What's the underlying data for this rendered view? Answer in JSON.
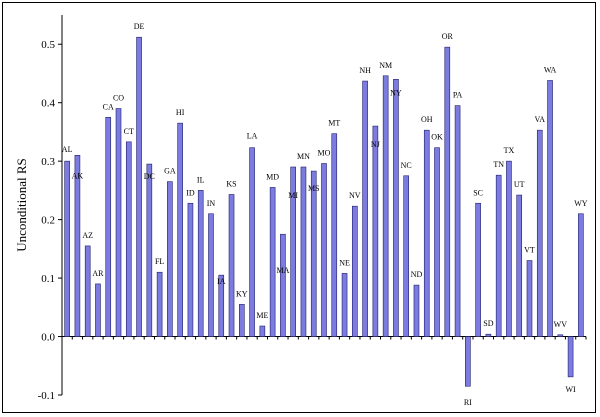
{
  "chart_data": {
    "type": "bar",
    "title": "",
    "xlabel": "",
    "ylabel": "Unconditional RS",
    "ylim": [
      -0.1,
      0.55
    ],
    "yticks": [
      "-0.1",
      "0.0",
      "0.1",
      "0.2",
      "0.3",
      "0.4",
      "0.5"
    ],
    "grid": false,
    "bar_color": "#7b7be0",
    "bar_edge_color": "#1f1f6b",
    "categories": [
      "AL",
      "AK",
      "AZ",
      "AR",
      "CA",
      "CO",
      "CT",
      "DE",
      "DC",
      "FL",
      "GA",
      "HI",
      "ID",
      "IL",
      "IN",
      "IA",
      "KS",
      "KY",
      "LA",
      "ME",
      "MD",
      "MA",
      "MI",
      "MN",
      "MS",
      "MO",
      "MT",
      "NE",
      "NV",
      "NH",
      "NJ",
      "NM",
      "NY",
      "NC",
      "ND",
      "OH",
      "OK",
      "OR",
      "PA",
      "RI",
      "SC",
      "SD",
      "TN",
      "TX",
      "UT",
      "VT",
      "VA",
      "WA",
      "WV",
      "WI",
      "WY"
    ],
    "values": [
      0.3,
      0.31,
      0.155,
      0.09,
      0.375,
      0.39,
      0.333,
      0.512,
      0.295,
      0.11,
      0.265,
      0.365,
      0.228,
      0.25,
      0.21,
      0.105,
      0.243,
      0.055,
      0.323,
      0.018,
      0.255,
      0.175,
      0.29,
      0.29,
      0.283,
      0.296,
      0.347,
      0.108,
      0.223,
      0.437,
      0.36,
      0.446,
      0.44,
      0.275,
      0.088,
      0.353,
      0.323,
      0.495,
      0.395,
      -0.085,
      0.228,
      0.004,
      0.276,
      0.3,
      0.242,
      0.13,
      0.353,
      0.438,
      0.003,
      -0.069,
      0.21
    ],
    "bar_labels": [
      {
        "text": "AL",
        "bar": 0,
        "dy": -9
      },
      {
        "text": "AK",
        "bar": 1,
        "dy": 23
      },
      {
        "text": "AZ",
        "bar": 2,
        "dy": -8
      },
      {
        "text": "AR",
        "bar": 3,
        "dy": -8
      },
      {
        "text": "CA",
        "bar": 4,
        "dy": -8
      },
      {
        "text": "CO",
        "bar": 5,
        "dy": -8
      },
      {
        "text": "CT",
        "bar": 6,
        "dy": -8
      },
      {
        "text": "DE",
        "bar": 7,
        "dy": -8
      },
      {
        "text": "DC",
        "bar": 8,
        "dy": 15
      },
      {
        "text": "FL",
        "bar": 9,
        "dy": -8
      },
      {
        "text": "GA",
        "bar": 10,
        "dy": -8
      },
      {
        "text": "HI",
        "bar": 11,
        "dy": -8
      },
      {
        "text": "ID",
        "bar": 12,
        "dy": -8
      },
      {
        "text": "IL",
        "bar": 13,
        "dy": -8
      },
      {
        "text": "IN",
        "bar": 14,
        "dy": -8
      },
      {
        "text": "IA",
        "bar": 15,
        "dy": 9
      },
      {
        "text": "KS",
        "bar": 16,
        "dy": -8
      },
      {
        "text": "KY",
        "bar": 17,
        "dy": -8
      },
      {
        "text": "LA",
        "bar": 18,
        "dy": -9
      },
      {
        "text": "ME",
        "bar": 19,
        "dy": -8
      },
      {
        "text": "MD",
        "bar": 20,
        "dy": -8
      },
      {
        "text": "MA",
        "bar": 21,
        "dy": 39
      },
      {
        "text": "MI",
        "bar": 22,
        "dy": 31
      },
      {
        "text": "MN",
        "bar": 23,
        "dy": -8
      },
      {
        "text": "MS",
        "bar": 24,
        "dy": 20
      },
      {
        "text": "MO",
        "bar": 25,
        "dy": -8
      },
      {
        "text": "MT",
        "bar": 26,
        "dy": -8
      },
      {
        "text": "NE",
        "bar": 27,
        "dy": -8
      },
      {
        "text": "NV",
        "bar": 28,
        "dy": -8
      },
      {
        "text": "NH",
        "bar": 29,
        "dy": -8
      },
      {
        "text": "NJ",
        "bar": 30,
        "dy": 21
      },
      {
        "text": "NM",
        "bar": 31,
        "dy": -8
      },
      {
        "text": "NY",
        "bar": 32,
        "dy": 16
      },
      {
        "text": "NC",
        "bar": 33,
        "dy": -8
      },
      {
        "text": "ND",
        "bar": 34,
        "dy": -8
      },
      {
        "text": "OH",
        "bar": 35,
        "dy": -8
      },
      {
        "text": "OK",
        "bar": 36,
        "dy": -8
      },
      {
        "text": "OR",
        "bar": 37,
        "dy": -8
      },
      {
        "text": "PA",
        "bar": 38,
        "dy": -8
      },
      {
        "text": "RI",
        "bar": 39,
        "dy": 19
      },
      {
        "text": "SC",
        "bar": 40,
        "dy": -8
      },
      {
        "text": "SD",
        "bar": 41,
        "dy": -8
      },
      {
        "text": "TN",
        "bar": 42,
        "dy": -8
      },
      {
        "text": "TX",
        "bar": 43,
        "dy": -8
      },
      {
        "text": "UT",
        "bar": 44,
        "dy": -8
      },
      {
        "text": "VT",
        "bar": 45,
        "dy": -8
      },
      {
        "text": "VA",
        "bar": 46,
        "dy": -8
      },
      {
        "text": "WA",
        "bar": 47,
        "dy": -8
      },
      {
        "text": "WV",
        "bar": 48,
        "dy": -8
      },
      {
        "text": "WI",
        "bar": 49,
        "dy": 15
      },
      {
        "text": "WY",
        "bar": 50,
        "dy": -8
      }
    ]
  }
}
